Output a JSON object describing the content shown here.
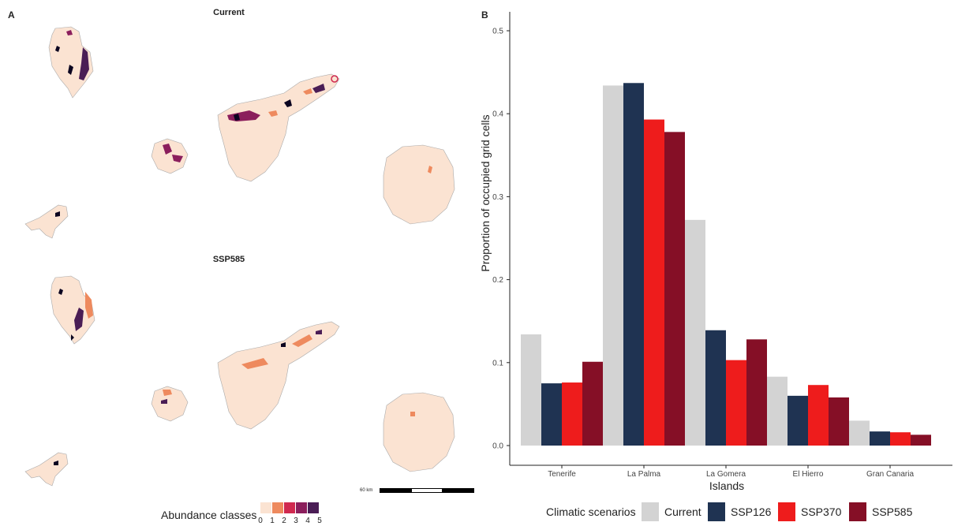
{
  "panel_a": {
    "letter": "A",
    "map_titles": [
      "Current",
      "SSP585"
    ],
    "legend": {
      "title": "Abundance classes",
      "labels": [
        "0",
        "1",
        "2",
        "3",
        "4",
        "5"
      ],
      "colors": [
        "#fbe3d2",
        "#ee8a5e",
        "#d0294f",
        "#8b1e5c",
        "#4a1d55",
        "#0b0420"
      ]
    },
    "scalebar_label": "60 km"
  },
  "panel_b": {
    "letter": "B",
    "chart_data": {
      "type": "bar",
      "categories": [
        "Tenerife",
        "La Palma",
        "La Gomera",
        "El Hierro",
        "Gran Canaria"
      ],
      "series": [
        {
          "name": "Current",
          "color": "#d3d3d3",
          "values": [
            0.134,
            0.434,
            0.272,
            0.083,
            0.03
          ]
        },
        {
          "name": "SSP126",
          "color": "#1f3352",
          "values": [
            0.075,
            0.437,
            0.139,
            0.06,
            0.017
          ]
        },
        {
          "name": "SSP370",
          "color": "#ee1c1c",
          "values": [
            0.076,
            0.393,
            0.103,
            0.073,
            0.016
          ]
        },
        {
          "name": "SSP585",
          "color": "#850f26",
          "values": [
            0.101,
            0.378,
            0.128,
            0.058,
            0.013
          ]
        }
      ],
      "xlabel": "Islands",
      "ylabel": "Proportion of occupied grid cells",
      "ylim": [
        0,
        0.5
      ],
      "yticks": [
        "0.0",
        "0.1",
        "0.2",
        "0.3",
        "0.4",
        "0.5"
      ],
      "legend_title": "Climatic scenarios",
      "legend_position": "bottom",
      "grid": false
    }
  }
}
